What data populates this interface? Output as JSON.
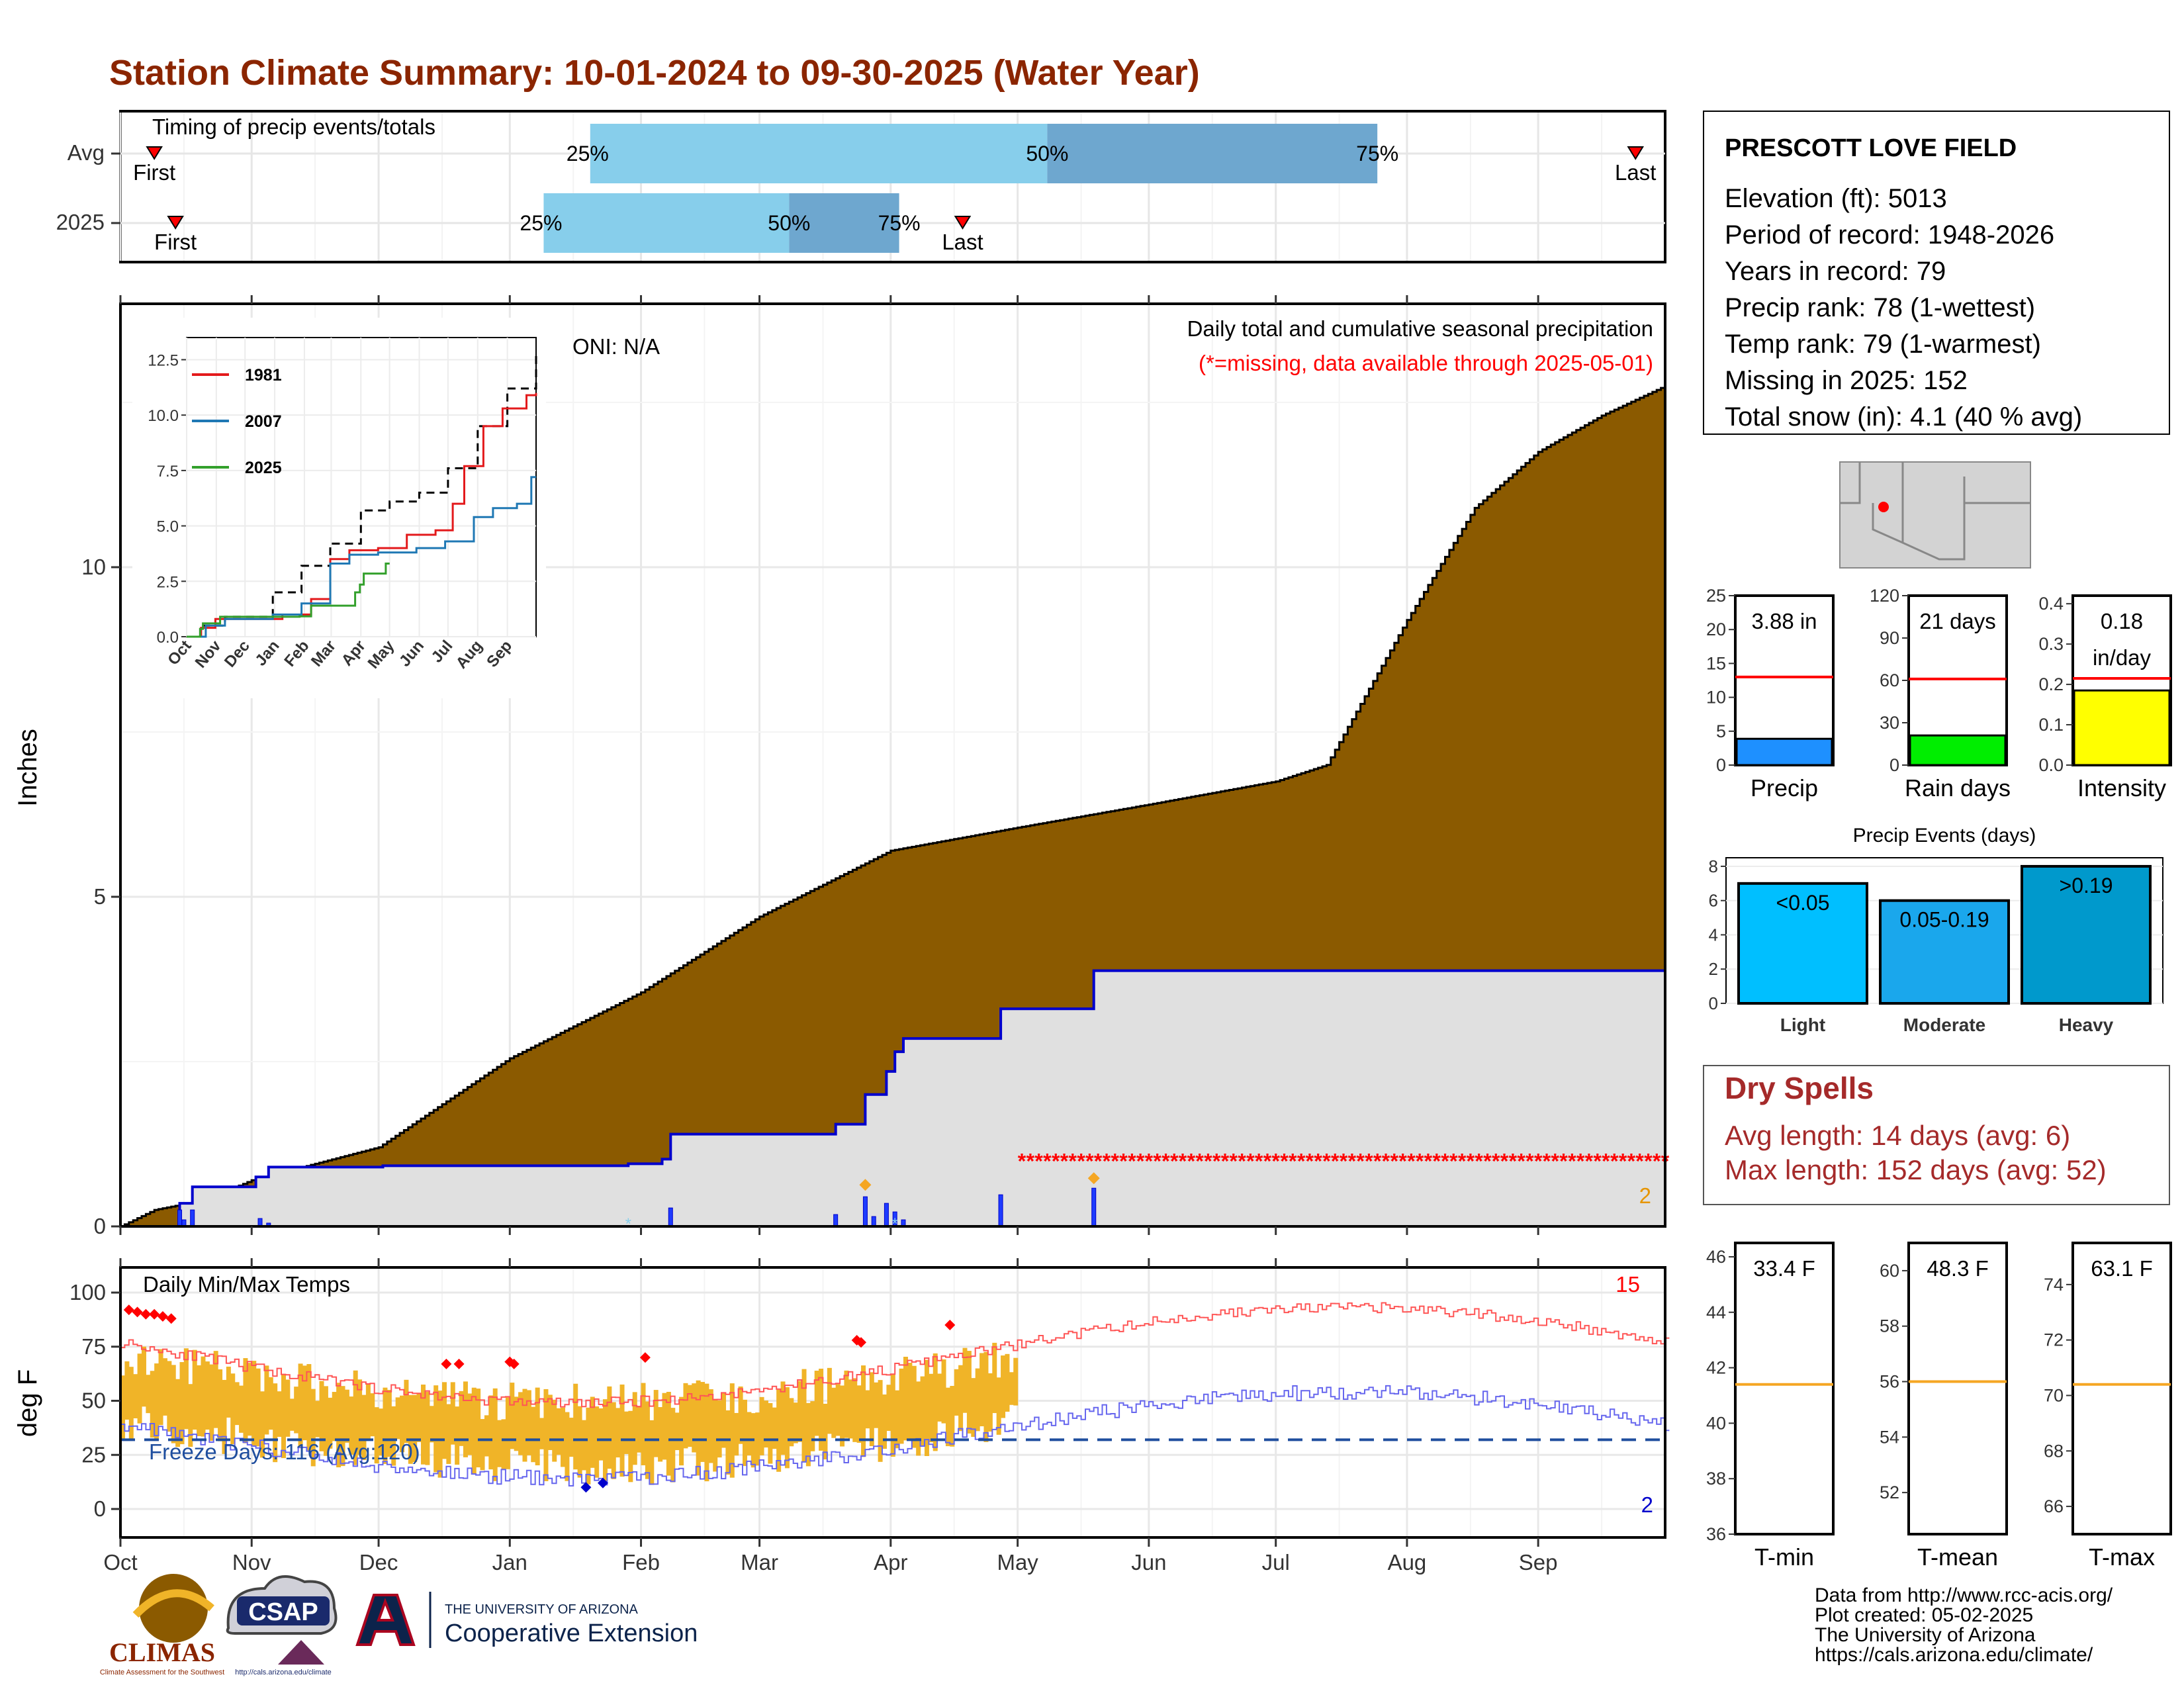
{
  "title": "Station Climate Summary: 10-01-2024 to 09-30-2025 (Water Year)",
  "timing": {
    "title": "Timing of precip events/totals",
    "rows": [
      {
        "label": "Avg",
        "first_label": "First",
        "last_label": "Last",
        "first_date": "2024-10-09",
        "last_date": "2025-09-24",
        "p25_label": "25%",
        "p50_label": "50%",
        "p75_label": "75%",
        "p25_date": "2025-01-20",
        "p50_date": "2025-05-08",
        "p75_date": "2025-07-25"
      },
      {
        "label": "2025",
        "first_label": "First",
        "last_label": "Last",
        "first_date": "2024-10-14",
        "last_date": "2025-04-18",
        "p25_label": "25%",
        "p50_label": "50%",
        "p75_label": "75%",
        "p25_date": "2025-01-09",
        "p50_date": "2025-03-08",
        "p75_date": "2025-04-03"
      }
    ]
  },
  "precip": {
    "ylabel": "Inches",
    "y_ticks": [
      "0",
      "5",
      "10"
    ],
    "note1": "Daily total and cumulative seasonal precipitation",
    "note2": "(*=missing, data available through 2025-05-01)",
    "oni": "ONI: N/A",
    "count_label": "2",
    "avg_total": 12.8,
    "obs_total": 3.88
  },
  "inset": {
    "y_ticks": [
      "0.0",
      "2.5",
      "5.0",
      "7.5",
      "10.0",
      "12.5"
    ],
    "x_ticks": [
      "Oct",
      "Nov",
      "Dec",
      "Jan",
      "Feb",
      "Mar",
      "Apr",
      "May",
      "Jun",
      "Jul",
      "Aug",
      "Sep"
    ],
    "legend": [
      {
        "name": "1981",
        "color": "#e31a1c"
      },
      {
        "name": "2007",
        "color": "#1f78b4"
      },
      {
        "name": "2025",
        "color": "#33a02c"
      }
    ]
  },
  "temps": {
    "ylabel": "deg F",
    "title": "Daily Min/Max Temps",
    "y_ticks": [
      "0",
      "25",
      "50",
      "75",
      "100"
    ],
    "freeze_label": "Freeze Days: 116 (Avg:120)",
    "hot_count": "15",
    "cold_count": "2",
    "freeze_line": 32
  },
  "months": [
    "Oct",
    "Nov",
    "Dec",
    "Jan",
    "Feb",
    "Mar",
    "Apr",
    "May",
    "Jun",
    "Jul",
    "Aug",
    "Sep"
  ],
  "station": {
    "name": "PRESCOTT LOVE FIELD",
    "lines": [
      "Elevation (ft): 5013",
      "Period of record: 1948-2026",
      "Years in record: 79",
      "Precip rank: 78 (1-wettest)",
      "Temp rank: 79 (1-warmest)",
      "Missing in 2025: 152",
      "Total snow (in): 4.1 (40 % avg)"
    ]
  },
  "gauges": [
    {
      "name": "Precip",
      "value_label": "3.88 in",
      "ticks": [
        "0",
        "5",
        "10",
        "15",
        "20",
        "25"
      ],
      "max": 25,
      "value": 3.88,
      "avg": 13,
      "color": "#1e90ff"
    },
    {
      "name": "Rain days",
      "value_label": "21 days",
      "ticks": [
        "0",
        "30",
        "60",
        "90",
        "120"
      ],
      "max": 120,
      "value": 21,
      "avg": 61,
      "color": "#00ee00"
    },
    {
      "name": "Intensity",
      "value_label": "0.18 in/day",
      "ticks": [
        "0.0",
        "0.1",
        "0.2",
        "0.3",
        "0.4"
      ],
      "max": 0.42,
      "value": 0.185,
      "avg": 0.215,
      "color": "#ffff00"
    }
  ],
  "events": {
    "title": "Precip Events (days)",
    "y_ticks": [
      "0",
      "2",
      "4",
      "6",
      "8"
    ],
    "bars": [
      {
        "name": "Light",
        "label": "<0.05",
        "value": 7,
        "color": "#00bfff"
      },
      {
        "name": "Moderate",
        "label": "0.05-0.19",
        "value": 6,
        "color": "#1aa7ec"
      },
      {
        "name": "Heavy",
        "label": ">0.19",
        "value": 8,
        "color": "#0099cc"
      }
    ]
  },
  "dry_spells": {
    "title": "Dry Spells",
    "avg": "Avg length: 14 days (avg: 6)",
    "max": "Max length: 152 days (avg: 52)"
  },
  "temp_gauges": [
    {
      "name": "T-min",
      "value_label": "33.4 F",
      "ticks": [
        "36",
        "38",
        "40",
        "42",
        "44",
        "46"
      ],
      "min": 36,
      "max": 46.5,
      "avg": 41.4
    },
    {
      "name": "T-mean",
      "value_label": "48.3 F",
      "ticks": [
        "52",
        "54",
        "56",
        "58",
        "60"
      ],
      "min": 50.5,
      "max": 61,
      "avg": 56
    },
    {
      "name": "T-max",
      "value_label": "63.1 F",
      "ticks": [
        "66",
        "68",
        "70",
        "72",
        "74"
      ],
      "min": 65,
      "max": 75.5,
      "avg": 70.4
    }
  ],
  "footer": {
    "lines": [
      "Data from http://www.rcc-acis.org/",
      "Plot created: 05-02-2025",
      "The University of Arizona",
      "https://cals.arizona.edu/climate/"
    ],
    "logo1": "CLIMAS",
    "logo1_sub": "Climate Assessment for the Southwest",
    "logo2": "CSAP",
    "logo2_sub": "http://cals.arizona.edu/climate",
    "logo3_small": "THE UNIVERSITY OF ARIZONA",
    "logo3_big": "Cooperative Extension"
  },
  "colors": {
    "title": "#8B2500",
    "cumulative_avg": "#8B5A00",
    "obs_line": "#0000cc",
    "temp_bar": "#f0b428",
    "max_line": "#ff5555",
    "min_line": "#6666ee",
    "missing": "#ff0000",
    "dry": "#a52a2a"
  }
}
